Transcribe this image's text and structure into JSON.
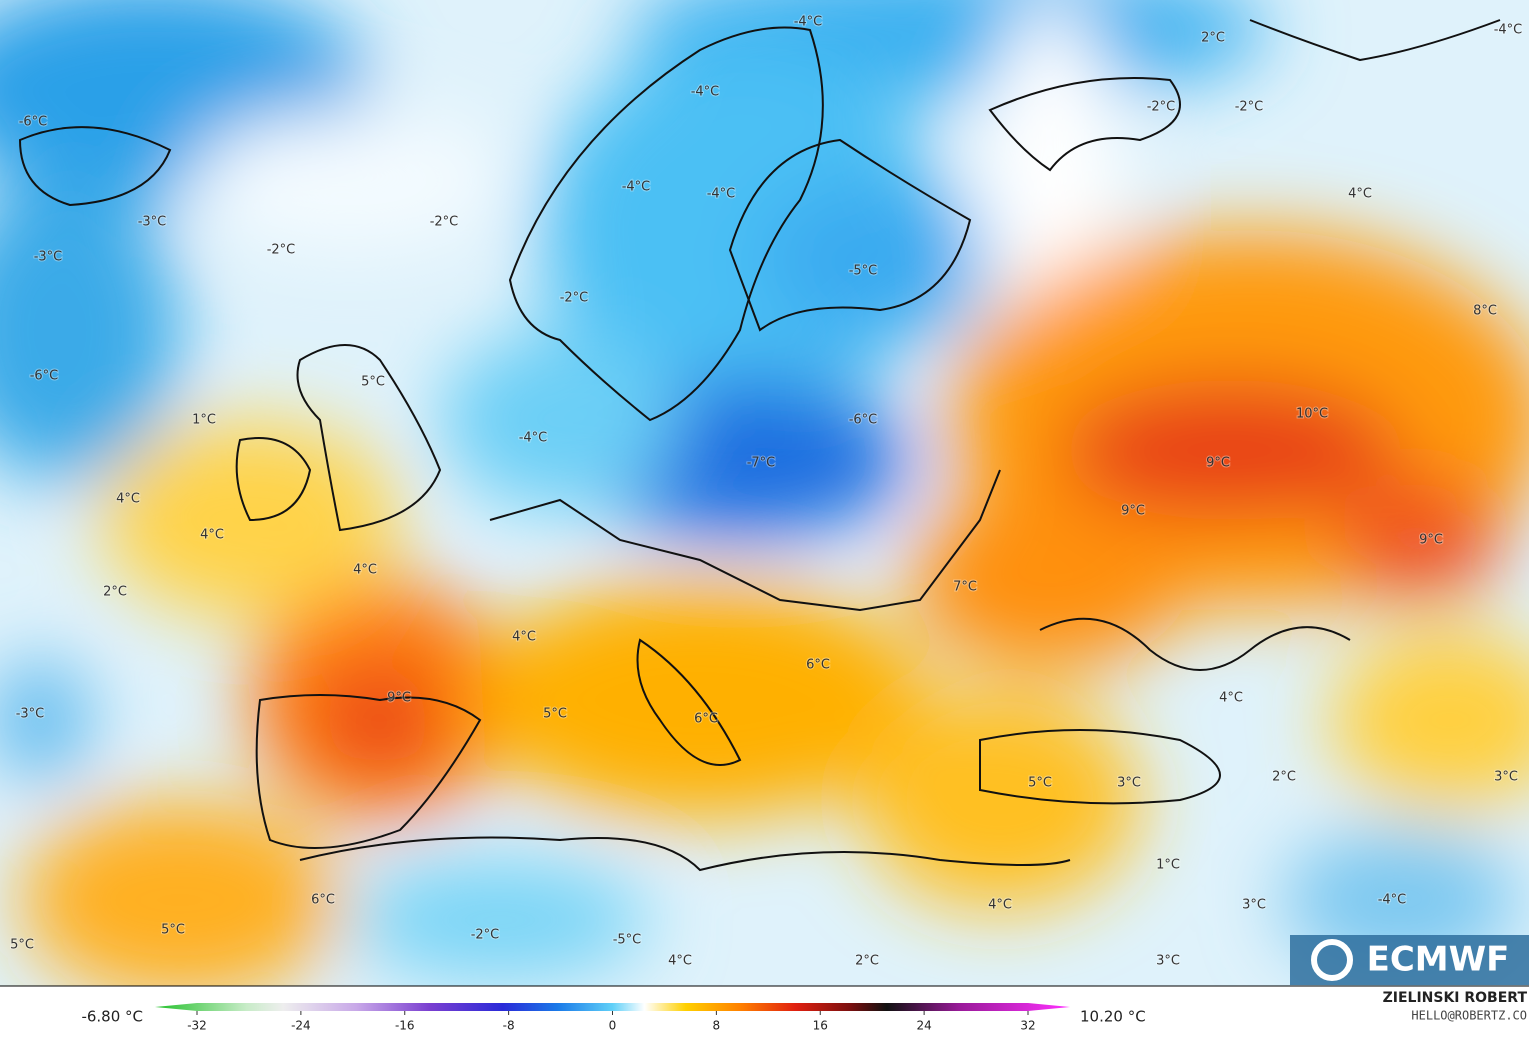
{
  "map": {
    "labels": [
      "-4°C",
      "2°C",
      "-4°C",
      "-4°C",
      "-2°C",
      "-2°C",
      "-6°C",
      "-4°C",
      "-4°C",
      "4°C",
      "-3°C",
      "-2°C",
      "-2°C",
      "-3°C",
      "-5°C",
      "-2°C",
      "8°C",
      "-6°C",
      "5°C",
      "1°C",
      "10°C",
      "-6°C",
      "-4°C",
      "-7°C",
      "9°C",
      "4°C",
      "9°C",
      "4°C",
      "9°C",
      "4°C",
      "7°C",
      "2°C",
      "4°C",
      "6°C",
      "9°C",
      "4°C",
      "-3°C",
      "5°C",
      "6°C",
      "5°C",
      "3°C",
      "2°C",
      "3°C",
      "1°C",
      "6°C",
      "-4°C",
      "4°C",
      "3°C",
      "5°C",
      "-2°C",
      "-5°C",
      "5°C",
      "4°C",
      "2°C",
      "3°C"
    ]
  },
  "logo": "ECMWF",
  "colorbar": {
    "min_label": "-6.80 °C",
    "max_label": "10.20 °C",
    "ticks": [
      -32,
      -24,
      -16,
      -8,
      0,
      8,
      16,
      24,
      32
    ]
  },
  "credit": {
    "name": "ZIELINSKI ROBERT",
    "email": "HELLO@ROBERTZ.CO"
  }
}
